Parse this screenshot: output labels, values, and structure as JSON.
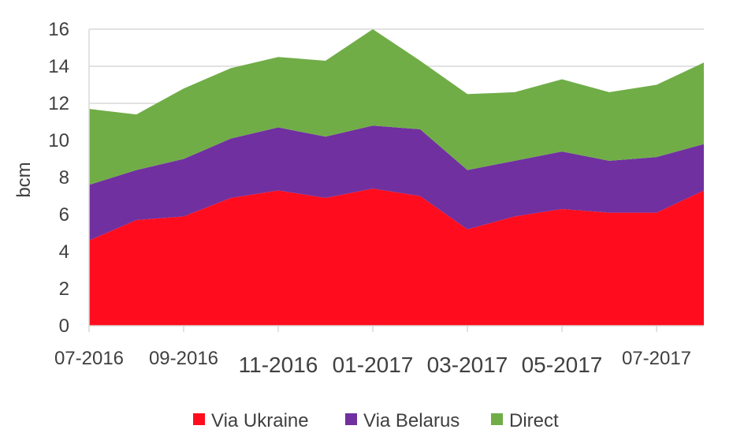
{
  "chart_data": {
    "type": "area",
    "stacked": true,
    "title": "",
    "xlabel": "",
    "ylabel": "bcm",
    "ylim": [
      0,
      16
    ],
    "yticks": [
      0,
      2,
      4,
      6,
      8,
      10,
      12,
      14,
      16
    ],
    "grid": true,
    "legend_position": "bottom",
    "categories": [
      "07-2016",
      "08-2016",
      "09-2016",
      "10-2016",
      "11-2016",
      "12-2016",
      "01-2017",
      "02-2017",
      "03-2017",
      "04-2017",
      "05-2017",
      "06-2017",
      "07-2017",
      "08-2017"
    ],
    "x_tick_labels": [
      {
        "index": 0,
        "label": "07-2016"
      },
      {
        "index": 2,
        "label": "09-2016"
      },
      {
        "index": 4,
        "label": "11-2016"
      },
      {
        "index": 6,
        "label": "01-2017"
      },
      {
        "index": 8,
        "label": "03-2017"
      },
      {
        "index": 10,
        "label": "05-2017"
      },
      {
        "index": 12,
        "label": "07-2017"
      }
    ],
    "series": [
      {
        "name": "Via Ukraine",
        "color": "#ff0d1f",
        "values": [
          4.6,
          5.7,
          5.9,
          6.9,
          7.3,
          6.9,
          7.4,
          7.0,
          5.2,
          5.9,
          6.3,
          6.1,
          6.1,
          7.3
        ]
      },
      {
        "name": "Via Belarus",
        "color": "#7030a0",
        "values": [
          3.0,
          2.7,
          3.1,
          3.2,
          3.4,
          3.3,
          3.4,
          3.6,
          3.2,
          3.0,
          3.1,
          2.8,
          3.0,
          2.5
        ]
      },
      {
        "name": "Direct",
        "color": "#70ad47",
        "values": [
          4.1,
          3.0,
          3.8,
          3.8,
          3.8,
          4.1,
          5.2,
          3.7,
          4.1,
          3.7,
          3.9,
          3.7,
          3.9,
          4.4
        ]
      }
    ]
  }
}
